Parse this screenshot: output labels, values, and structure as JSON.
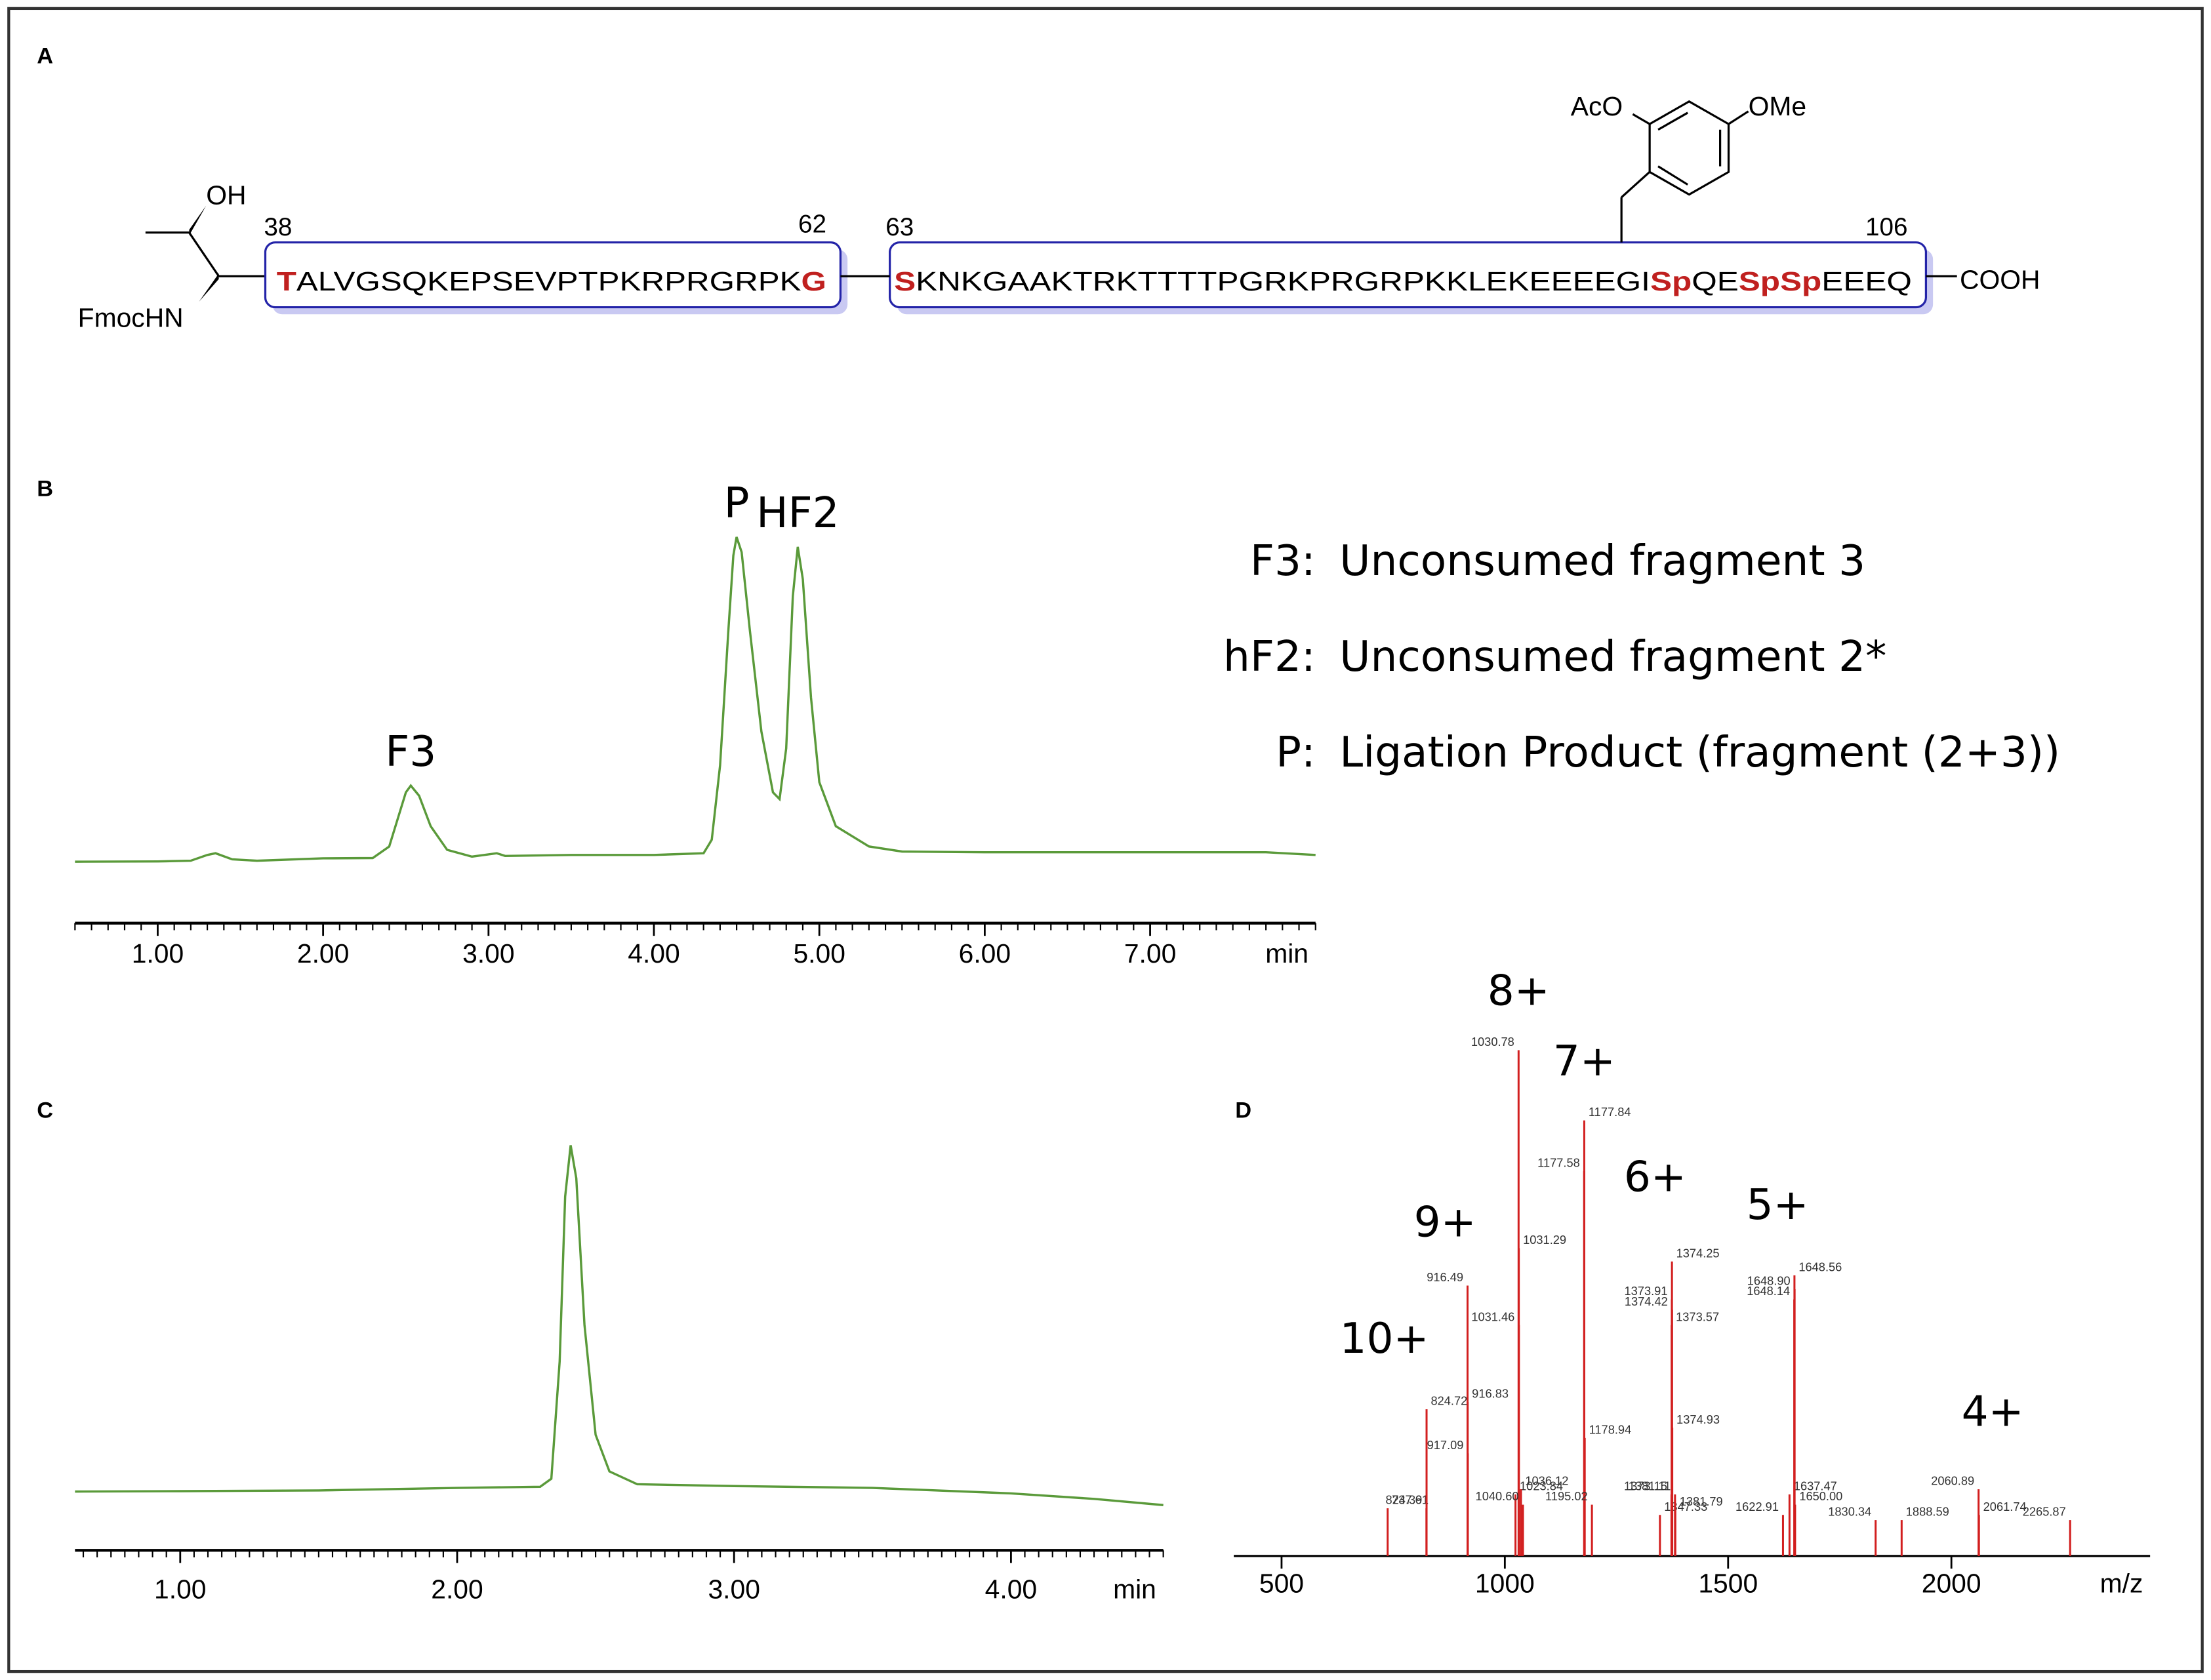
{
  "panel_a": {
    "label": "A",
    "oh": "OH",
    "fmoc": "FmocHN",
    "aco": "AcO",
    "ome": "OMe",
    "cooh": "COOH",
    "numbers": [
      "38",
      "62",
      "63",
      "106"
    ],
    "highlight_color": "#c0201f",
    "fragments": [
      [
        {
          "text": "T",
          "highlight": true
        },
        {
          "text": "ALVGSQKEPSEVPTPKRPRGRPK",
          "highlight": false
        },
        {
          "text": "G",
          "highlight": true
        }
      ],
      [
        {
          "text": "S",
          "highlight": true
        },
        {
          "text": "KNKGAAKTRKTTTTPGRKPRGRPKKLEKEEEEGI",
          "highlight": false
        },
        {
          "text": "Sp",
          "highlight": true
        },
        {
          "text": "QE",
          "highlight": false
        },
        {
          "text": "SpSp",
          "highlight": true
        },
        {
          "text": "EEEQ",
          "highlight": false
        }
      ]
    ]
  },
  "chart_data": [
    {
      "type": "line",
      "panel": "B",
      "color": "#5a9a3a",
      "xlabel": "min",
      "xlim": [
        0.5,
        8.0
      ],
      "ylim": [
        0,
        100
      ],
      "minor_tick_interval": 0.1,
      "xticks": [
        {
          "value": 1,
          "label": "1.00"
        },
        {
          "value": 2,
          "label": "2.00"
        },
        {
          "value": 3,
          "label": "3.00"
        },
        {
          "value": 4,
          "label": "4.00"
        },
        {
          "value": 5,
          "label": "5.00"
        },
        {
          "value": 6,
          "label": "6.00"
        },
        {
          "value": 7,
          "label": "7.00"
        }
      ],
      "x": [
        0.5,
        1.0,
        1.2,
        1.3,
        1.35,
        1.45,
        1.6,
        2.0,
        2.3,
        2.4,
        2.45,
        2.5,
        2.53,
        2.58,
        2.65,
        2.75,
        2.9,
        3.05,
        3.1,
        3.5,
        4.0,
        4.3,
        4.35,
        4.4,
        4.45,
        4.48,
        4.5,
        4.53,
        4.58,
        4.65,
        4.72,
        4.76,
        4.8,
        4.84,
        4.87,
        4.9,
        4.95,
        5.0,
        5.1,
        5.3,
        5.5,
        6.0,
        7.0,
        7.7,
        8.0
      ],
      "values": [
        1.5,
        1.6,
        1.8,
        3.5,
        4,
        2.2,
        1.8,
        2.5,
        2.6,
        6,
        14,
        22,
        24,
        21,
        12,
        5,
        3,
        4,
        3.2,
        3.5,
        3.5,
        4,
        8,
        30,
        70,
        92,
        97.5,
        93,
        70,
        40,
        22,
        20,
        35,
        80,
        94.6,
        85,
        50,
        25,
        12,
        6,
        4.5,
        4.3,
        4.3,
        4.3,
        3.5
      ],
      "annotations": [
        {
          "text": "F3",
          "x": 2.53,
          "y": 24
        },
        {
          "text": "P",
          "x": 4.5,
          "y": 97.5
        },
        {
          "text": "HF2",
          "x": 4.87,
          "y": 94.6
        }
      ],
      "notes": [
        {
          "key": "F3:",
          "text": "Unconsumed fragment 3"
        },
        {
          "key": "hF2:",
          "text": "Unconsumed fragment 2*"
        },
        {
          "key": "P:",
          "text": "Ligation Product (fragment (2+3))"
        }
      ]
    },
    {
      "type": "line",
      "panel": "C",
      "color": "#5a9a3a",
      "xlabel": "min",
      "xlim": [
        0.62,
        4.55
      ],
      "ylim": [
        0,
        100
      ],
      "minor_tick_interval": 0.05,
      "xticks": [
        {
          "value": 1,
          "label": "1.00"
        },
        {
          "value": 2,
          "label": "2.00"
        },
        {
          "value": 3,
          "label": "3.00"
        },
        {
          "value": 4,
          "label": "4.00"
        }
      ],
      "x": [
        0.62,
        1.0,
        1.5,
        2.0,
        2.3,
        2.34,
        2.37,
        2.39,
        2.41,
        2.43,
        2.46,
        2.5,
        2.55,
        2.65,
        3.0,
        3.5,
        4.0,
        4.3,
        4.55
      ],
      "values": [
        4.5,
        4.6,
        4.8,
        5.5,
        5.8,
        8,
        40,
        85,
        99,
        90,
        50,
        20,
        10,
        6.5,
        6,
        5.5,
        4,
        2.5,
        0.8
      ]
    },
    {
      "type": "stem",
      "panel": "D",
      "color": "#d21f1f",
      "xlabel": "m/z",
      "xlim": [
        393,
        2445
      ],
      "ylim": [
        0,
        100
      ],
      "xticks": [
        500,
        1000,
        1500,
        2000
      ],
      "x": [
        737.61,
        824.39,
        824.72,
        916.49,
        916.83,
        917.09,
        1023.84,
        1030.78,
        1031.29,
        1031.46,
        1036.12,
        1040.6,
        1177.84,
        1177.58,
        1178.94,
        1195.02,
        1347.33,
        1373.15,
        1373.57,
        1373.91,
        1374.25,
        1374.42,
        1374.93,
        1381.11,
        1381.79,
        1622.91,
        1637.47,
        1648.14,
        1648.56,
        1648.9,
        1650,
        1830.34,
        1888.59,
        2060.89,
        2061.74,
        2265.87
      ],
      "x_labels": [
        "737.61",
        "824.39",
        "824.72",
        "916.49",
        "916.83",
        "917.09",
        "1023.84",
        "1030.78",
        "1031.29",
        "1031.46",
        "1036.12",
        "1040.60",
        "1177.84",
        "1177.58",
        "1178.94",
        "1195.02",
        "1347.33",
        "1373.15",
        "1373.57",
        "1373.91",
        "1374.25",
        "1374.42",
        "1374.93",
        "1381.11",
        "1381.79",
        "1622.91",
        "1637.47",
        "1648.14",
        "1648.56",
        "1648.90",
        "1650.00",
        "1830.34",
        "1888.59",
        "2060.89",
        "2061.74",
        "2265.87"
      ],
      "values": [
        9.3,
        9.3,
        28.6,
        52.7,
        30,
        20,
        12,
        98.6,
        60,
        45,
        13,
        10,
        84.9,
        75,
        23,
        10,
        8,
        12,
        45,
        50,
        57.4,
        48,
        25,
        12,
        9,
        8,
        12,
        50,
        54.7,
        52,
        10,
        7,
        7,
        13,
        8,
        7
      ],
      "annotations": [
        {
          "text": "10+",
          "x": 824.72,
          "y": 28.6
        },
        {
          "text": "9+",
          "x": 916.49,
          "y": 52.7
        },
        {
          "text": "8+",
          "x": 1030.78,
          "y": 98.6
        },
        {
          "text": "7+",
          "x": 1177.84,
          "y": 84.9
        },
        {
          "text": "6+",
          "x": 1374.25,
          "y": 57.4
        },
        {
          "text": "5+",
          "x": 1648.56,
          "y": 54.7
        },
        {
          "text": "4+",
          "x": 2060.89,
          "y": 13
        }
      ]
    }
  ]
}
